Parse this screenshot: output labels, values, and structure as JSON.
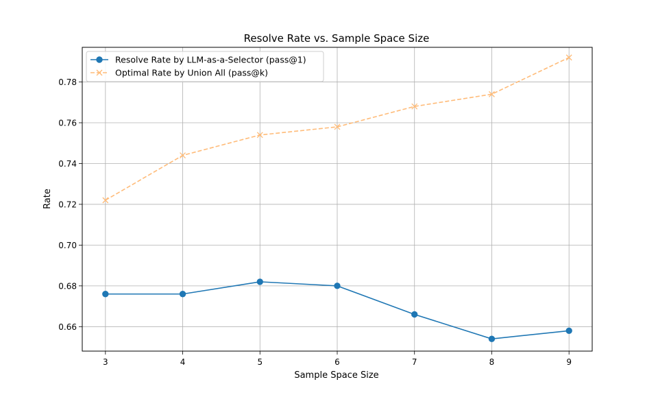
{
  "chart_data": {
    "type": "line",
    "title": "Resolve Rate vs. Sample Space Size",
    "xlabel": "Sample Space Size",
    "ylabel": "Rate",
    "x": [
      3,
      4,
      5,
      6,
      7,
      8,
      9
    ],
    "xlim": [
      2.7,
      9.3
    ],
    "ylim": [
      0.648,
      0.797
    ],
    "yticks": [
      0.66,
      0.68,
      0.7,
      0.72,
      0.74,
      0.76,
      0.78
    ],
    "ytick_labels": [
      "0.66",
      "0.68",
      "0.70",
      "0.72",
      "0.74",
      "0.76",
      "0.78"
    ],
    "grid": true,
    "legend_position": "top-left",
    "series": [
      {
        "name": "Resolve Rate by LLM-as-a-Selector (pass@1)",
        "values": [
          0.676,
          0.676,
          0.682,
          0.68,
          0.666,
          0.654,
          0.658
        ],
        "color": "#1f77b4",
        "marker": "circle",
        "linestyle": "solid"
      },
      {
        "name": "Optimal Rate by Union All (pass@k)",
        "values": [
          0.722,
          0.744,
          0.754,
          0.758,
          0.768,
          0.774,
          0.792
        ],
        "color": "#ffbb78",
        "marker": "x",
        "linestyle": "dashed"
      }
    ]
  }
}
